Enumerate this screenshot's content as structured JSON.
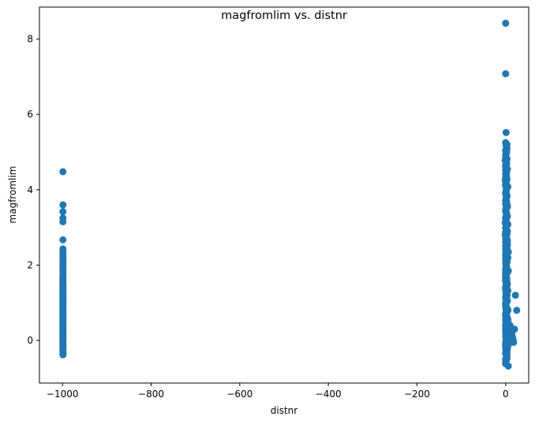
{
  "chart_data": {
    "type": "scatter",
    "title": "magfromlim vs. distnr",
    "xlabel": "distnr",
    "ylabel": "magfromlim",
    "xlim": [
      -1052,
      52
    ],
    "ylim": [
      -1.13,
      8.85
    ],
    "xticks": [
      -1000,
      -800,
      -600,
      -400,
      -200,
      0
    ],
    "xtick_labels": [
      "−1000",
      "−800",
      "−600",
      "−400",
      "−200",
      "0"
    ],
    "yticks": [
      0,
      2,
      4,
      6,
      8
    ],
    "ytick_labels": [
      "0",
      "2",
      "4",
      "6",
      "8"
    ],
    "grid": false,
    "legend": "none",
    "marker_color": "#1f77b4",
    "series": [
      {
        "x": [
          -999,
          -999,
          -999,
          -999,
          -999,
          -999,
          -999,
          -999,
          -999,
          -999,
          -999,
          -999,
          -999,
          -999,
          -999,
          -999,
          -999,
          -999,
          -999,
          -999,
          -999,
          -999,
          -999,
          -999,
          -999,
          -999,
          -999,
          -999,
          -999,
          -999,
          -999,
          -999,
          -999,
          -999,
          -999,
          -999,
          -999,
          -999,
          -999,
          -999,
          -999,
          -999,
          -999,
          -999,
          -999,
          -999,
          -999,
          -999,
          -999,
          -999,
          -999,
          -999,
          -999,
          -999,
          -999,
          -999,
          -999,
          -999,
          -999,
          -999,
          -999,
          -999,
          -999,
          -999,
          -999,
          -999,
          -999,
          -999,
          -999,
          -999,
          -999,
          -999,
          -999,
          -999,
          -999,
          -999,
          -999,
          -999,
          -999,
          -999,
          -999,
          -999,
          -999,
          -999,
          -999,
          -999,
          -999,
          -999,
          -999,
          -999,
          -999,
          -999,
          -999,
          -999,
          -999,
          0,
          0,
          1,
          0,
          1,
          2,
          0,
          1,
          0,
          1,
          -1,
          2,
          0,
          1,
          0,
          2,
          1,
          0,
          -1,
          1,
          0,
          2,
          1,
          0,
          3,
          1,
          0,
          2,
          4,
          1,
          0,
          2,
          3,
          0,
          1,
          -1,
          2,
          0,
          3,
          1,
          0,
          2,
          4,
          1,
          0,
          3,
          1,
          2,
          0,
          1,
          3,
          0,
          2,
          1,
          4,
          0,
          1,
          2,
          0,
          3,
          1,
          0,
          5,
          2,
          1,
          0,
          3,
          1,
          0,
          2,
          4,
          1,
          0,
          2,
          3,
          1,
          0,
          5,
          2,
          1,
          0,
          3,
          1,
          2,
          0,
          4,
          1,
          0,
          2,
          3,
          1,
          0,
          6,
          2,
          1,
          0,
          3,
          1,
          2,
          0,
          4,
          1,
          0,
          2,
          3,
          1,
          0,
          5,
          2,
          1,
          0,
          3,
          1,
          2,
          0,
          4,
          1,
          0,
          2,
          3,
          1,
          0,
          5,
          2,
          1,
          0,
          3,
          1,
          2,
          0,
          4,
          1,
          0,
          6,
          2,
          1,
          0,
          3,
          1,
          2,
          0,
          5,
          1,
          0,
          2,
          3,
          1,
          0,
          4,
          2,
          1,
          0,
          3,
          1,
          0,
          2,
          5,
          1,
          0,
          3,
          1,
          2,
          0,
          4,
          1,
          0,
          2,
          3,
          1,
          0,
          6,
          2,
          1,
          0,
          3,
          2,
          1,
          0,
          4,
          1,
          0,
          2,
          3,
          1,
          0,
          5,
          2,
          1,
          3,
          0,
          1,
          2,
          4,
          0,
          1,
          3,
          2,
          0,
          1,
          5,
          0,
          2,
          1,
          3,
          0,
          1,
          2,
          4,
          0,
          1,
          3,
          2,
          0,
          1,
          6,
          0,
          2,
          1,
          3,
          0,
          1,
          2,
          4,
          0,
          1,
          3,
          2,
          0,
          1,
          5,
          0,
          2,
          1,
          3,
          0,
          1,
          2,
          4,
          0,
          1,
          3,
          0,
          1,
          0,
          2,
          1,
          0,
          3,
          1,
          0,
          2,
          4,
          1,
          0,
          2,
          3,
          0,
          1,
          -1,
          2,
          0,
          3,
          1,
          5,
          7,
          4,
          6,
          8,
          9,
          10,
          11,
          12,
          13,
          14,
          15,
          16,
          17,
          18,
          20,
          22,
          25,
          3,
          2
        ],
        "y": [
          4.48,
          3.6,
          3.42,
          3.25,
          3.15,
          2.67,
          2.43,
          2.36,
          2.3,
          2.22,
          2.15,
          2.08,
          2.02,
          1.96,
          1.9,
          1.84,
          1.78,
          1.72,
          1.66,
          1.6,
          1.55,
          1.5,
          1.45,
          1.4,
          1.35,
          1.3,
          1.25,
          1.2,
          1.15,
          1.1,
          1.05,
          1.0,
          0.95,
          0.9,
          0.85,
          0.8,
          0.75,
          0.7,
          0.65,
          0.6,
          0.55,
          0.5,
          0.45,
          0.4,
          0.35,
          0.3,
          0.25,
          0.2,
          0.15,
          0.1,
          0.05,
          0.0,
          -0.05,
          -0.1,
          -0.15,
          -0.2,
          -0.25,
          -0.3,
          -0.35,
          -0.38,
          1.48,
          1.38,
          1.28,
          1.18,
          1.08,
          0.98,
          0.88,
          0.78,
          0.68,
          0.58,
          0.48,
          0.38,
          0.28,
          0.18,
          0.08,
          -0.02,
          -0.12,
          -0.22,
          1.62,
          1.52,
          1.42,
          1.32,
          1.22,
          1.12,
          1.02,
          0.92,
          0.82,
          0.72,
          0.62,
          0.52,
          0.42,
          0.32,
          0.22,
          0.12,
          0.02,
          8.42,
          7.08,
          5.52,
          5.25,
          5.18,
          5.12,
          5.05,
          4.98,
          4.92,
          4.85,
          4.78,
          4.72,
          4.65,
          4.58,
          4.52,
          4.45,
          4.38,
          4.32,
          4.25,
          4.18,
          4.12,
          4.05,
          3.98,
          3.92,
          3.85,
          3.78,
          3.72,
          3.65,
          3.58,
          3.52,
          3.45,
          3.38,
          3.32,
          3.25,
          3.18,
          3.12,
          3.05,
          2.98,
          2.92,
          2.85,
          2.78,
          2.72,
          2.65,
          2.58,
          2.52,
          2.45,
          2.38,
          2.32,
          2.25,
          2.18,
          2.12,
          2.05,
          1.98,
          1.92,
          1.85,
          1.78,
          1.72,
          1.65,
          1.58,
          1.52,
          1.45,
          1.38,
          1.32,
          1.25,
          1.18,
          1.12,
          1.05,
          0.98,
          0.92,
          0.85,
          0.78,
          0.72,
          0.65,
          0.58,
          0.52,
          0.45,
          0.38,
          0.32,
          0.25,
          0.18,
          0.12,
          0.05,
          -0.02,
          -0.08,
          -0.15,
          -0.22,
          -0.28,
          -0.35,
          -0.42,
          -0.48,
          -0.55,
          -0.62,
          -0.68,
          5.02,
          4.95,
          4.88,
          4.82,
          4.75,
          4.68,
          4.62,
          4.55,
          4.48,
          4.42,
          4.35,
          4.28,
          4.22,
          4.15,
          4.08,
          4.02,
          3.95,
          3.88,
          3.82,
          3.75,
          3.68,
          3.62,
          3.55,
          3.48,
          3.42,
          3.35,
          3.28,
          3.22,
          3.15,
          3.08,
          3.02,
          2.95,
          2.88,
          2.82,
          2.75,
          2.68,
          2.62,
          2.55,
          2.48,
          2.42,
          2.35,
          2.28,
          2.22,
          2.15,
          2.08,
          2.02,
          1.95,
          1.88,
          1.82,
          1.75,
          1.68,
          1.62,
          1.55,
          1.48,
          1.42,
          1.35,
          1.28,
          1.22,
          1.15,
          1.08,
          1.02,
          0.95,
          0.88,
          0.82,
          0.75,
          0.68,
          0.62,
          0.55,
          0.48,
          0.42,
          0.35,
          0.28,
          0.22,
          0.15,
          0.08,
          0.02,
          -0.05,
          -0.12,
          -0.18,
          -0.25,
          -0.32,
          -0.38,
          -0.45,
          -0.52,
          -0.58,
          2.9,
          2.8,
          2.7,
          2.6,
          2.5,
          2.4,
          2.3,
          2.2,
          2.1,
          2.0,
          1.9,
          1.8,
          1.7,
          1.6,
          1.5,
          1.4,
          1.3,
          1.2,
          1.1,
          1.0,
          0.9,
          0.8,
          0.7,
          0.6,
          0.5,
          0.4,
          0.3,
          0.2,
          0.1,
          0.0,
          -0.1,
          -0.2,
          -0.3,
          -0.4,
          -0.5,
          1.95,
          1.85,
          1.75,
          1.65,
          1.55,
          1.45,
          1.35,
          1.25,
          1.15,
          1.05,
          0.95,
          0.85,
          0.75,
          0.65,
          0.55,
          0.45,
          0.35,
          0.25,
          0.15,
          0.05,
          -0.05,
          -0.15,
          -0.25,
          -0.35,
          3.3,
          3.1,
          2.6,
          2.2,
          1.7,
          1.3,
          0.9,
          0.5,
          0.1,
          -0.2,
          -0.4,
          -0.5,
          0.7,
          0.4,
          0.2,
          0.0,
          -0.1,
          -0.2,
          5.2,
          4.1,
          3.3,
          2.8,
          2.3,
          1.6,
          1.2,
          0.8,
          0.55,
          0.35,
          0.6,
          0.45,
          0.3,
          0.15,
          0.4,
          0.05,
          0.25,
          0.1,
          0.2,
          0.1,
          0.05,
          0.0,
          -0.05,
          0.3,
          1.2,
          0.8,
          5.1,
          5.0
        ]
      }
    ]
  }
}
